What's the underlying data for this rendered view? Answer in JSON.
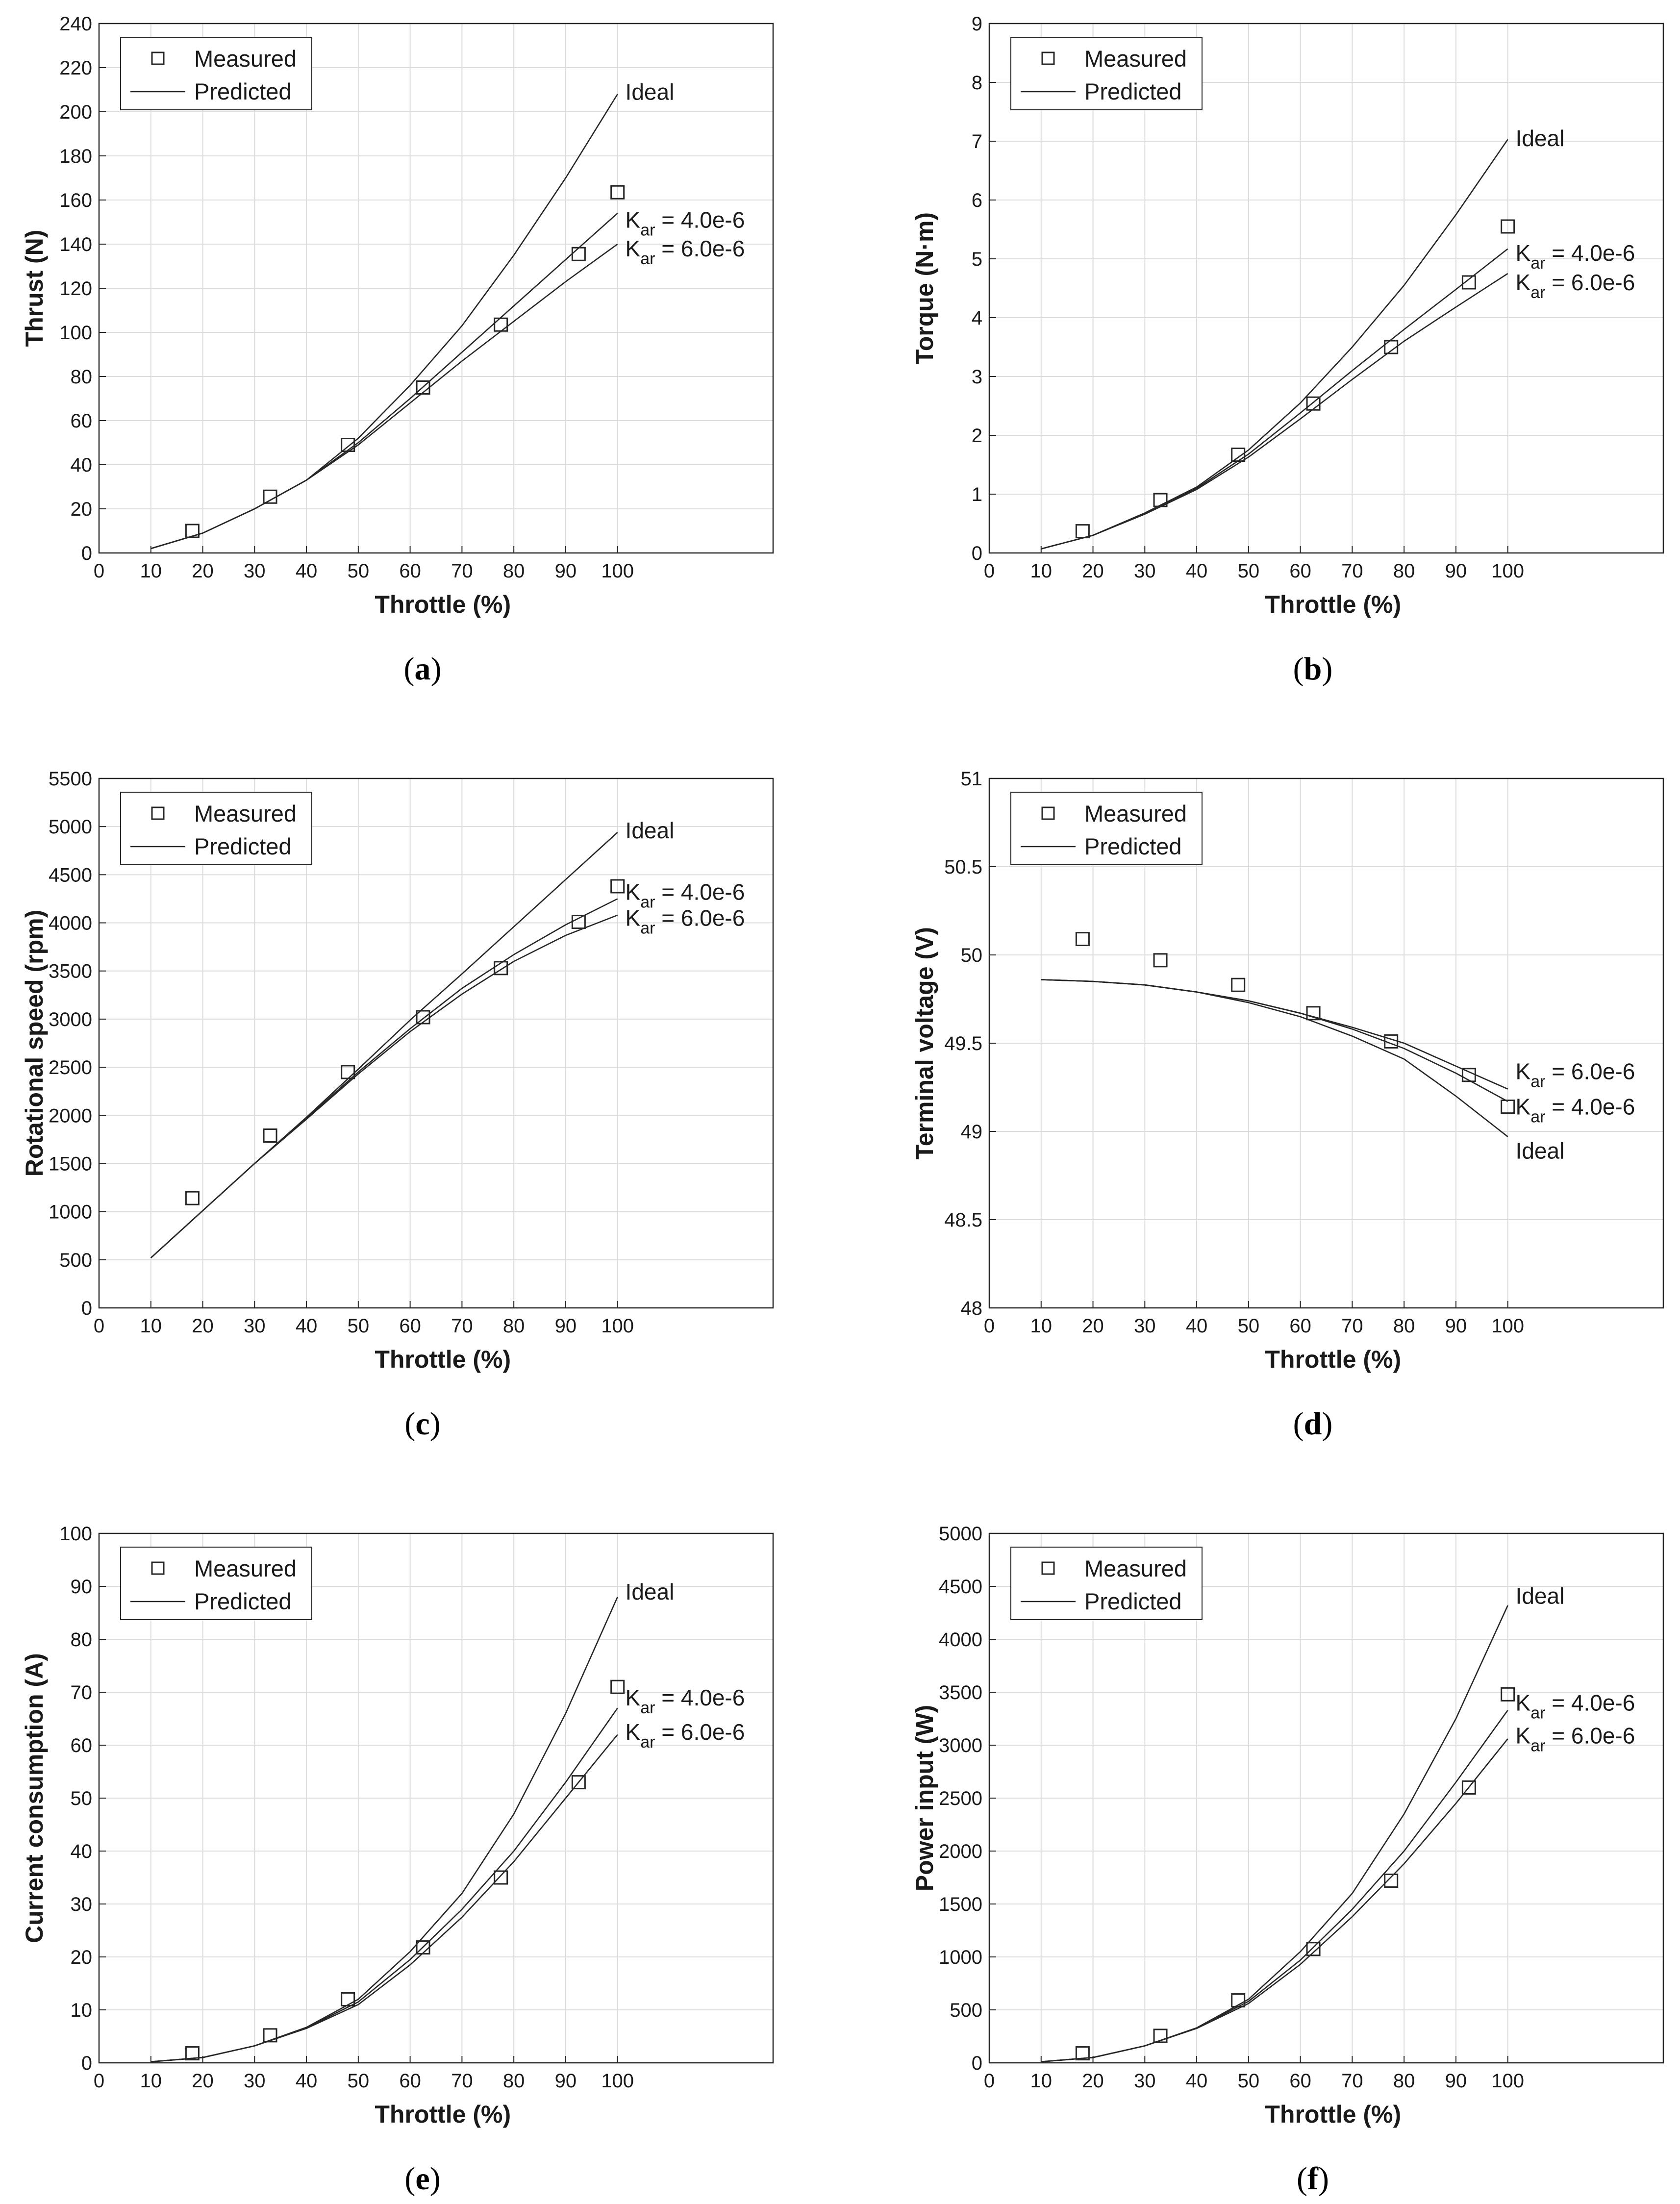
{
  "chart_data": [
    {
      "type": "line",
      "caption": "(a)",
      "caption_letter": "a",
      "xlabel": "Throttle (%)",
      "ylabel": "Thrust (N)",
      "xlim": [
        0,
        130
      ],
      "ylim": [
        0,
        240
      ],
      "xticks": [
        0,
        10,
        20,
        30,
        40,
        50,
        60,
        70,
        80,
        90,
        100
      ],
      "yticks": [
        0,
        20,
        40,
        60,
        80,
        100,
        120,
        140,
        160,
        180,
        200,
        220,
        240
      ],
      "grid": true,
      "legend": {
        "position": "top-left",
        "measured_label": "Measured",
        "predicted_label": "Predicted"
      },
      "measured": {
        "name": "Measured",
        "x": [
          18,
          33,
          48,
          62.5,
          77.5,
          92.5,
          100
        ],
        "y": [
          10,
          25.5,
          49,
          75,
          103.5,
          135.5,
          163.5
        ]
      },
      "series": [
        {
          "name": "Ideal",
          "x": [
            10,
            20,
            30,
            40,
            50,
            60,
            70,
            80,
            90,
            100
          ],
          "y": [
            2,
            9,
            20,
            33,
            52,
            76,
            103,
            135,
            170,
            208
          ]
        },
        {
          "name": "K_ar = 4.0e-6",
          "x": [
            10,
            20,
            30,
            40,
            50,
            60,
            70,
            80,
            90,
            100
          ],
          "y": [
            2,
            9,
            20,
            33,
            50,
            70,
            91,
            112,
            133,
            154
          ]
        },
        {
          "name": "K_ar = 6.0e-6",
          "x": [
            10,
            20,
            30,
            40,
            50,
            60,
            70,
            80,
            90,
            100
          ],
          "y": [
            2,
            9,
            20,
            33,
            49,
            68,
            87,
            105,
            123,
            140
          ]
        }
      ],
      "annotations": [
        {
          "main": "Ideal",
          "sub": "",
          "rest": "",
          "x": 101.5,
          "y": 209
        },
        {
          "main": "K",
          "sub": "ar",
          "rest": " = 4.0e-6",
          "x": 101.5,
          "y": 151
        },
        {
          "main": "K",
          "sub": "ar",
          "rest": " = 6.0e-6",
          "x": 101.5,
          "y": 138
        }
      ]
    },
    {
      "type": "line",
      "caption": "(b)",
      "caption_letter": "b",
      "xlabel": "Throttle (%)",
      "ylabel": "Torque (N·m)",
      "xlim": [
        0,
        130
      ],
      "ylim": [
        0,
        9
      ],
      "xticks": [
        0,
        10,
        20,
        30,
        40,
        50,
        60,
        70,
        80,
        90,
        100
      ],
      "yticks": [
        0,
        1,
        2,
        3,
        4,
        5,
        6,
        7,
        8,
        9
      ],
      "grid": true,
      "legend": {
        "position": "top-left",
        "measured_label": "Measured",
        "predicted_label": "Predicted"
      },
      "measured": {
        "name": "Measured",
        "x": [
          18,
          33,
          48,
          62.5,
          77.5,
          92.5,
          100
        ],
        "y": [
          0.37,
          0.9,
          1.67,
          2.54,
          3.5,
          4.6,
          5.55
        ]
      },
      "series": [
        {
          "name": "Ideal",
          "x": [
            10,
            20,
            30,
            40,
            50,
            60,
            70,
            80,
            90,
            100
          ],
          "y": [
            0.07,
            0.3,
            0.68,
            1.12,
            1.75,
            2.55,
            3.5,
            4.55,
            5.75,
            7.03
          ]
        },
        {
          "name": "K_ar = 4.0e-6",
          "x": [
            10,
            20,
            30,
            40,
            50,
            60,
            70,
            80,
            90,
            100
          ],
          "y": [
            0.07,
            0.3,
            0.67,
            1.1,
            1.68,
            2.38,
            3.1,
            3.8,
            4.48,
            5.17
          ]
        },
        {
          "name": "K_ar = 6.0e-6",
          "x": [
            10,
            20,
            30,
            40,
            50,
            60,
            70,
            80,
            90,
            100
          ],
          "y": [
            0.07,
            0.3,
            0.66,
            1.08,
            1.63,
            2.28,
            2.95,
            3.6,
            4.18,
            4.75
          ]
        }
      ],
      "annotations": [
        {
          "main": "Ideal",
          "sub": "",
          "rest": "",
          "x": 101.5,
          "y": 7.05
        },
        {
          "main": "K",
          "sub": "ar",
          "rest": " = 4.0e-6",
          "x": 101.5,
          "y": 5.1
        },
        {
          "main": "K",
          "sub": "ar",
          "rest": " = 6.0e-6",
          "x": 101.5,
          "y": 4.6
        }
      ]
    },
    {
      "type": "line",
      "caption": "(c)",
      "caption_letter": "c",
      "xlabel": "Throttle (%)",
      "ylabel": "Rotational speed (rpm)",
      "xlim": [
        0,
        130
      ],
      "ylim": [
        0,
        5500
      ],
      "xticks": [
        0,
        10,
        20,
        30,
        40,
        50,
        60,
        70,
        80,
        90,
        100
      ],
      "yticks": [
        0,
        500,
        1000,
        1500,
        2000,
        2500,
        3000,
        3500,
        4000,
        4500,
        5000,
        5500
      ],
      "grid": true,
      "legend": {
        "position": "top-left",
        "measured_label": "Measured",
        "predicted_label": "Predicted"
      },
      "measured": {
        "name": "Measured",
        "x": [
          18,
          33,
          48,
          62.5,
          77.5,
          92.5,
          100
        ],
        "y": [
          1140,
          1790,
          2450,
          3020,
          3530,
          4010,
          4380
        ]
      },
      "series": [
        {
          "name": "Ideal",
          "x": [
            10,
            20,
            30,
            40,
            50,
            60,
            70,
            80,
            90,
            100
          ],
          "y": [
            520,
            1010,
            1500,
            1980,
            2480,
            2990,
            3470,
            3960,
            4450,
            4940
          ]
        },
        {
          "name": "K_ar = 4.0e-6",
          "x": [
            10,
            20,
            30,
            40,
            50,
            60,
            70,
            80,
            90,
            100
          ],
          "y": [
            520,
            1010,
            1500,
            1970,
            2450,
            2900,
            3320,
            3670,
            3980,
            4250
          ]
        },
        {
          "name": "K_ar = 6.0e-6",
          "x": [
            10,
            20,
            30,
            40,
            50,
            60,
            70,
            80,
            90,
            100
          ],
          "y": [
            520,
            1010,
            1500,
            1960,
            2430,
            2870,
            3260,
            3600,
            3870,
            4080
          ]
        }
      ],
      "annotations": [
        {
          "main": "Ideal",
          "sub": "",
          "rest": "",
          "x": 101.5,
          "y": 4960
        },
        {
          "main": "K",
          "sub": "ar",
          "rest": " = 4.0e-6",
          "x": 101.5,
          "y": 4320
        },
        {
          "main": "K",
          "sub": "ar",
          "rest": " = 6.0e-6",
          "x": 101.5,
          "y": 4050
        }
      ]
    },
    {
      "type": "line",
      "caption": "(d)",
      "caption_letter": "d",
      "xlabel": "Throttle (%)",
      "ylabel": "Terminal voltage (V)",
      "xlim": [
        0,
        130
      ],
      "ylim": [
        48,
        51
      ],
      "xticks": [
        0,
        10,
        20,
        30,
        40,
        50,
        60,
        70,
        80,
        90,
        100
      ],
      "yticks": [
        48,
        48.5,
        49,
        49.5,
        50,
        50.5,
        51
      ],
      "grid": true,
      "legend": {
        "position": "top-left",
        "measured_label": "Measured",
        "predicted_label": "Predicted"
      },
      "measured": {
        "name": "Measured",
        "x": [
          18,
          33,
          48,
          62.5,
          77.5,
          92.5,
          100
        ],
        "y": [
          50.09,
          49.97,
          49.83,
          49.67,
          49.51,
          49.32,
          49.14
        ]
      },
      "series": [
        {
          "name": "Ideal",
          "x": [
            10,
            20,
            30,
            40,
            50,
            60,
            70,
            80,
            90,
            100
          ],
          "y": [
            49.86,
            49.85,
            49.83,
            49.79,
            49.73,
            49.65,
            49.54,
            49.41,
            49.2,
            48.97
          ]
        },
        {
          "name": "K_ar = 4.0e-6",
          "x": [
            10,
            20,
            30,
            40,
            50,
            60,
            70,
            80,
            90,
            100
          ],
          "y": [
            49.86,
            49.85,
            49.83,
            49.79,
            49.74,
            49.67,
            49.58,
            49.47,
            49.33,
            49.17
          ]
        },
        {
          "name": "K_ar = 6.0e-6",
          "x": [
            10,
            20,
            30,
            40,
            50,
            60,
            70,
            80,
            90,
            100
          ],
          "y": [
            49.86,
            49.85,
            49.83,
            49.79,
            49.74,
            49.67,
            49.59,
            49.5,
            49.37,
            49.24
          ]
        }
      ],
      "annotations": [
        {
          "main": "K",
          "sub": "ar",
          "rest": " = 6.0e-6",
          "x": 101.5,
          "y": 49.34
        },
        {
          "main": "K",
          "sub": "ar",
          "rest": " = 4.0e-6",
          "x": 101.5,
          "y": 49.14
        },
        {
          "main": "Ideal",
          "sub": "",
          "rest": "",
          "x": 101.5,
          "y": 48.89
        }
      ]
    },
    {
      "type": "line",
      "caption": "(e)",
      "caption_letter": "e",
      "xlabel": "Throttle (%)",
      "ylabel": "Current consumption (A)",
      "xlim": [
        0,
        130
      ],
      "ylim": [
        0,
        100
      ],
      "xticks": [
        0,
        10,
        20,
        30,
        40,
        50,
        60,
        70,
        80,
        90,
        100
      ],
      "yticks": [
        0,
        10,
        20,
        30,
        40,
        50,
        60,
        70,
        80,
        90,
        100
      ],
      "grid": true,
      "legend": {
        "position": "top-left",
        "measured_label": "Measured",
        "predicted_label": "Predicted"
      },
      "measured": {
        "name": "Measured",
        "x": [
          18,
          33,
          48,
          62.5,
          77.5,
          92.5,
          100
        ],
        "y": [
          1.8,
          5.2,
          12,
          21.8,
          35,
          53,
          71
        ]
      },
      "series": [
        {
          "name": "Ideal",
          "x": [
            10,
            20,
            30,
            40,
            50,
            60,
            70,
            80,
            90,
            100
          ],
          "y": [
            0.2,
            1,
            3.2,
            6.7,
            12,
            21,
            32,
            47,
            66,
            88
          ]
        },
        {
          "name": "K_ar = 4.0e-6",
          "x": [
            10,
            20,
            30,
            40,
            50,
            60,
            70,
            80,
            90,
            100
          ],
          "y": [
            0.2,
            1,
            3.2,
            6.6,
            11.5,
            19.5,
            29,
            40,
            53,
            67
          ]
        },
        {
          "name": "K_ar = 6.0e-6",
          "x": [
            10,
            20,
            30,
            40,
            50,
            60,
            70,
            80,
            90,
            100
          ],
          "y": [
            0.2,
            1,
            3.2,
            6.5,
            11,
            18.5,
            27.5,
            38,
            50,
            62
          ]
        }
      ],
      "annotations": [
        {
          "main": "Ideal",
          "sub": "",
          "rest": "",
          "x": 101.5,
          "y": 89
        },
        {
          "main": "K",
          "sub": "ar",
          "rest": " = 4.0e-6",
          "x": 101.5,
          "y": 69
        },
        {
          "main": "K",
          "sub": "ar",
          "rest": " = 6.0e-6",
          "x": 101.5,
          "y": 62.5
        }
      ]
    },
    {
      "type": "line",
      "caption": "(f)",
      "caption_letter": "f",
      "xlabel": "Throttle (%)",
      "ylabel": "Power input (W)",
      "xlim": [
        0,
        130
      ],
      "ylim": [
        0,
        5000
      ],
      "xticks": [
        0,
        10,
        20,
        30,
        40,
        50,
        60,
        70,
        80,
        90,
        100
      ],
      "yticks": [
        0,
        500,
        1000,
        1500,
        2000,
        2500,
        3000,
        3500,
        4000,
        4500,
        5000
      ],
      "grid": true,
      "legend": {
        "position": "top-left",
        "measured_label": "Measured",
        "predicted_label": "Predicted"
      },
      "measured": {
        "name": "Measured",
        "x": [
          18,
          33,
          48,
          62.5,
          77.5,
          92.5,
          100
        ],
        "y": [
          90,
          255,
          590,
          1075,
          1720,
          2600,
          3480
        ]
      },
      "series": [
        {
          "name": "Ideal",
          "x": [
            10,
            20,
            30,
            40,
            50,
            60,
            70,
            80,
            90,
            100
          ],
          "y": [
            10,
            50,
            160,
            330,
            600,
            1050,
            1600,
            2350,
            3250,
            4320
          ]
        },
        {
          "name": "K_ar = 4.0e-6",
          "x": [
            10,
            20,
            30,
            40,
            50,
            60,
            70,
            80,
            90,
            100
          ],
          "y": [
            10,
            50,
            160,
            330,
            580,
            970,
            1450,
            2000,
            2650,
            3330
          ]
        },
        {
          "name": "K_ar = 6.0e-6",
          "x": [
            10,
            20,
            30,
            40,
            50,
            60,
            70,
            80,
            90,
            100
          ],
          "y": [
            10,
            50,
            160,
            325,
            560,
            930,
            1380,
            1880,
            2450,
            3060
          ]
        }
      ],
      "annotations": [
        {
          "main": "Ideal",
          "sub": "",
          "rest": "",
          "x": 101.5,
          "y": 4410
        },
        {
          "main": "K",
          "sub": "ar",
          "rest": " = 4.0e-6",
          "x": 101.5,
          "y": 3400
        },
        {
          "main": "K",
          "sub": "ar",
          "rest": " = 6.0e-6",
          "x": 101.5,
          "y": 3090
        }
      ]
    }
  ]
}
